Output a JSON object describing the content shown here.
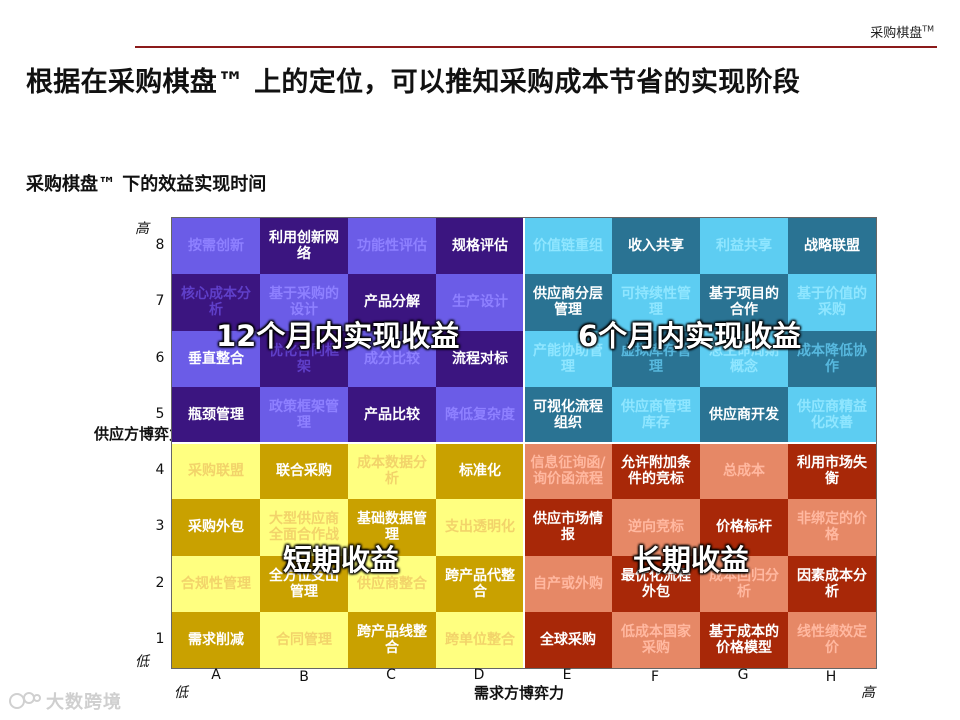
{
  "header": {
    "brand": "采购棋盘",
    "brand_tm": "TM"
  },
  "title": "根据在采购棋盘™ 上的定位，可以推知采购成本节省的实现阶段",
  "subtitle": "采购棋盘™ 下的效益实现时间",
  "colors": {
    "q1_a": "#6b5ce7",
    "q1_b": "#3b1580",
    "q2_a": "#5dcdf2",
    "q2_b": "#2a7393",
    "q3_a": "#ffff80",
    "q3_b": "#c9a100",
    "q4_a": "#e68866",
    "q4_b": "#a82808"
  },
  "rows": [
    {
      "num": "8",
      "cells": [
        "按需创新",
        "利用创新网络",
        "功能性评估",
        "规格评估",
        "价值链重组",
        "收入共享",
        "利益共享",
        "战略联盟"
      ]
    },
    {
      "num": "7",
      "cells": [
        "核心成本分析",
        "基于采购的设计",
        "产品分解",
        "生产设计",
        "供应商分层管理",
        "可持续性管理",
        "基于项目的合作",
        "基于价值的采购"
      ]
    },
    {
      "num": "6",
      "cells": [
        "垂直整合",
        "优化合同框架",
        "成分比较",
        "流程对标",
        "产能协助管理",
        "虚拟库存管理",
        "总生命周期概念",
        "成本降低协作"
      ]
    },
    {
      "num": "5",
      "cells": [
        "瓶颈管理",
        "政策框架管理",
        "产品比较",
        "降低复杂度",
        "可视化流程组织",
        "供应商管理库存",
        "供应商开发",
        "供应商精益化改善"
      ]
    },
    {
      "num": "4",
      "cells": [
        "采购联盟",
        "联合采购",
        "成本数据分析",
        "标准化",
        "信息征询函/询价函流程",
        "允许附加条件的竞标",
        "总成本",
        "利用市场失衡"
      ]
    },
    {
      "num": "3",
      "cells": [
        "采购外包",
        "大型供应商全面合作战",
        "基础数据管理",
        "支出透明化",
        "供应市场情报",
        "逆向竞标",
        "价格标杆",
        "非绑定的价格"
      ]
    },
    {
      "num": "2",
      "cells": [
        "合规性管理",
        "全方位支出管理",
        "供应商整合",
        "跨产品代整合",
        "自产或外购",
        "最优化流程外包",
        "成本回归分析",
        "因素成本分析"
      ]
    },
    {
      "num": "1",
      "cells": [
        "需求削减",
        "合同管理",
        "跨产品线整合",
        "跨单位整合",
        "全球采购",
        "低成本国家采购",
        "基于成本的价格模型",
        "线性绩效定价"
      ]
    }
  ],
  "quadrant_labels": {
    "top_left": "12个月内实现收益",
    "top_right": "6个月内实现收益",
    "bottom_left": "短期收益",
    "bottom_right": "长期收益"
  },
  "columns": [
    "A",
    "B",
    "C",
    "D",
    "E",
    "F",
    "G",
    "H"
  ],
  "axes": {
    "y_title": "供应方博弈力",
    "x_title": "需求方博弈力",
    "y_high": "高",
    "y_low": "低",
    "x_low": "低",
    "x_high": "高"
  },
  "watermark": "大数跨境"
}
